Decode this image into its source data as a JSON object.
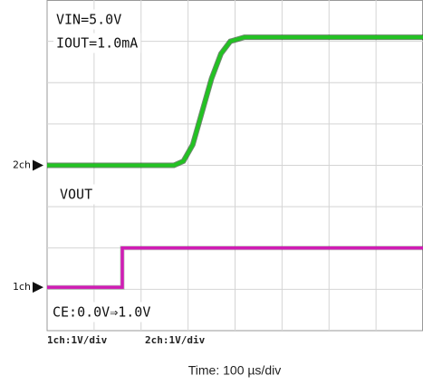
{
  "chart_data": {
    "type": "line",
    "xlim": [
      0,
      800
    ],
    "ylim": [
      0,
      8
    ],
    "xticks": [
      100,
      200,
      300,
      400,
      500,
      600,
      700
    ],
    "yticks": [
      1,
      2,
      3,
      4,
      5,
      6,
      7
    ],
    "grid": true,
    "series": [
      {
        "color": "#22c322",
        "x": [
          0,
          270,
          290,
          310,
          330,
          350,
          370,
          390,
          420,
          800
        ],
        "values": [
          4,
          4,
          4.1,
          4.5,
          5.3,
          6.1,
          6.7,
          7.0,
          7.1,
          7.1
        ]
      },
      {
        "color": "#d01cb4",
        "x": [
          0,
          160,
          160,
          800
        ],
        "values": [
          1.05,
          1.05,
          2.0,
          2.0
        ]
      }
    ],
    "markers": [
      {
        "label": "2ch",
        "value": 4
      },
      {
        "label": "1ch",
        "value": 1.05
      }
    ],
    "annotations": [
      "VIN=5.0V",
      "IOUT=1.0mA",
      "VOUT",
      "CE:0.0V⇒1.0V"
    ],
    "scales": [
      "1ch:1V/div",
      "2ch:1V/div"
    ],
    "xlabel": "Time: 100 µs/div"
  }
}
